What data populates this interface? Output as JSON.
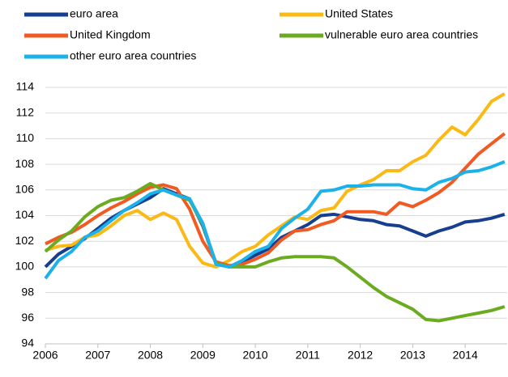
{
  "chart_data": {
    "type": "line",
    "x": [
      2006,
      2006.25,
      2006.5,
      2006.75,
      2007,
      2007.25,
      2007.5,
      2007.75,
      2008,
      2008.25,
      2008.5,
      2008.75,
      2009,
      2009.25,
      2009.5,
      2009.75,
      2010,
      2010.25,
      2010.5,
      2010.75,
      2011,
      2011.25,
      2011.5,
      2011.75,
      2012,
      2012.25,
      2012.5,
      2012.75,
      2013,
      2013.25,
      2013.5,
      2013.75,
      2014,
      2014.25,
      2014.5,
      2014.75
    ],
    "series": [
      {
        "name": "euro area",
        "color": "#173f8f",
        "values": [
          100.0,
          101.0,
          101.6,
          102.2,
          103.0,
          103.8,
          104.4,
          104.9,
          105.4,
          106.1,
          105.7,
          105.3,
          103.2,
          100.3,
          100.0,
          100.4,
          100.9,
          101.4,
          102.3,
          102.8,
          103.3,
          104.0,
          104.1,
          103.9,
          103.7,
          103.6,
          103.3,
          103.2,
          102.8,
          102.4,
          102.8,
          103.1,
          103.5,
          103.6,
          103.8,
          104.1
        ]
      },
      {
        "name": "United States",
        "color": "#fbb916",
        "values": [
          101.3,
          101.6,
          101.7,
          102.3,
          102.5,
          103.2,
          104.0,
          104.4,
          103.7,
          104.2,
          103.7,
          101.6,
          100.3,
          100.0,
          100.5,
          101.2,
          101.6,
          102.5,
          103.2,
          103.9,
          103.7,
          104.4,
          104.6,
          105.9,
          106.4,
          106.8,
          107.5,
          107.5,
          108.2,
          108.7,
          109.9,
          110.9,
          110.3,
          111.5,
          112.9,
          113.5
        ]
      },
      {
        "name": "United Kingdom",
        "color": "#f15a22",
        "values": [
          101.8,
          102.3,
          102.7,
          103.3,
          104.0,
          104.6,
          105.1,
          105.7,
          106.2,
          106.4,
          106.1,
          104.5,
          102.0,
          100.4,
          100.1,
          100.2,
          100.6,
          101.1,
          102.1,
          102.8,
          102.9,
          103.3,
          103.6,
          104.3,
          104.3,
          104.3,
          104.1,
          105.0,
          104.7,
          105.2,
          105.8,
          106.6,
          107.7,
          108.8,
          109.6,
          110.4
        ]
      },
      {
        "name": "vulnerable euro area countries",
        "color": "#6aab20",
        "values": [
          101.2,
          102.1,
          102.8,
          103.9,
          104.7,
          105.2,
          105.4,
          105.9,
          106.5,
          106.0,
          105.6,
          105.2,
          103.3,
          100.3,
          100.0,
          100.0,
          100.0,
          100.4,
          100.7,
          100.8,
          100.8,
          100.8,
          100.7,
          100.0,
          99.2,
          98.4,
          97.7,
          97.2,
          96.7,
          95.9,
          95.8,
          96.0,
          96.2,
          96.4,
          96.6,
          96.9
        ]
      },
      {
        "name": "other euro area countries",
        "color": "#1cb1e9",
        "values": [
          99.1,
          100.5,
          101.2,
          102.3,
          102.8,
          103.6,
          104.4,
          105.0,
          105.7,
          106.0,
          105.6,
          105.3,
          103.4,
          100.2,
          100.0,
          100.5,
          101.2,
          101.6,
          103.0,
          103.8,
          104.5,
          105.9,
          106.0,
          106.3,
          106.3,
          106.4,
          106.4,
          106.4,
          106.1,
          106.0,
          106.6,
          106.9,
          107.4,
          107.5,
          107.8,
          108.2
        ]
      }
    ],
    "xlim": [
      2006,
      2014.8
    ],
    "xticks": [
      2006,
      2007,
      2008,
      2009,
      2010,
      2011,
      2012,
      2013,
      2014
    ],
    "ylim": [
      94,
      114
    ],
    "yticks": [
      94,
      96,
      98,
      100,
      102,
      104,
      106,
      108,
      110,
      112,
      114
    ],
    "grid": true
  }
}
